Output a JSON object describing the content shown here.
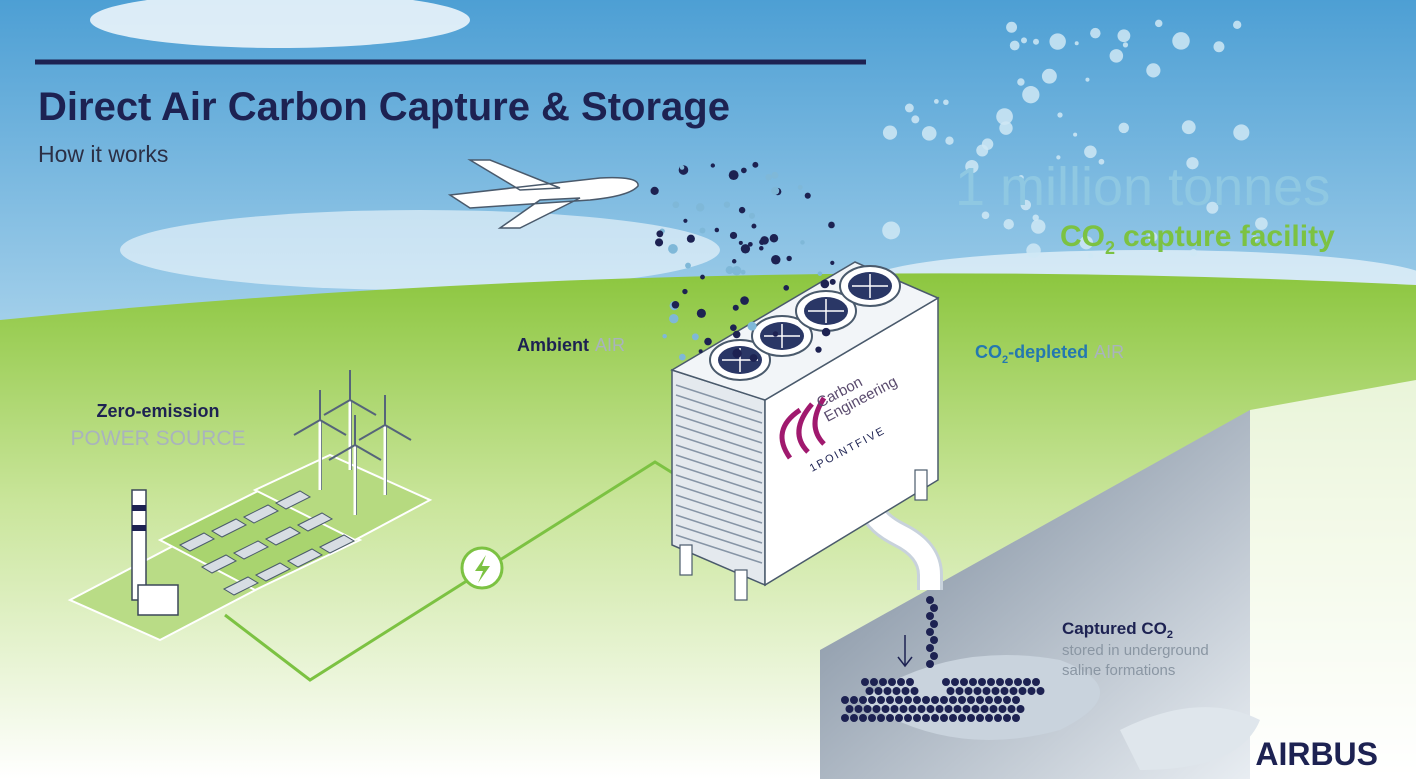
{
  "header": {
    "title": "Direct Air Carbon Capture & Storage",
    "subtitle": "How it works"
  },
  "headline": {
    "amount": "1 million tonnes",
    "facility": {
      "prefix": "CO",
      "subscript": "2",
      "suffix": "capture facility"
    }
  },
  "labels": {
    "ambient_air": {
      "bold": "Ambient",
      "light": "AIR"
    },
    "depleted_air": {
      "prefix": "CO",
      "subscript": "2",
      "bold": "-depleted",
      "light": "AIR"
    },
    "power_source": {
      "bold": "Zero-emission",
      "light": "POWER SOURCE"
    },
    "captured": {
      "prefix": "Captured CO",
      "subscript": "2",
      "detail": [
        "stored in underground",
        "saline formations"
      ]
    }
  },
  "logos": {
    "carbon_engineering": [
      "Carbon",
      "Engineering"
    ],
    "pointfive": "1POINTFIVE",
    "brand": "AIRBUS"
  }
}
